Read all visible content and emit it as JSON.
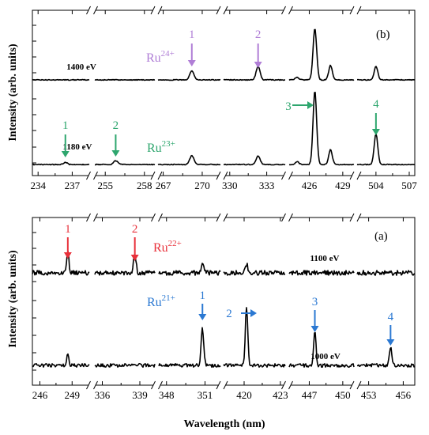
{
  "figure": {
    "xlabel": "Wavelength (nm)",
    "ylabel": "Intensity (arb. units)"
  },
  "colors": {
    "ru24": "#b07ed6",
    "ru23": "#2ea66e",
    "ru22": "#e8303a",
    "ru21": "#2a78d2",
    "trace": "#000000"
  },
  "chart_data": [
    {
      "type": "line",
      "panel_label": "(b)",
      "xlabel": "Wavelength (nm)",
      "ylabel": "Intensity (arb. units)",
      "segments": [
        {
          "ticks": [
            "234",
            "237"
          ],
          "xlim": [
            233.5,
            238.5
          ]
        },
        {
          "ticks": [
            "255",
            "258"
          ],
          "xlim": [
            254.2,
            258.8
          ]
        },
        {
          "ticks": [
            "267",
            "270"
          ],
          "xlim": [
            266.6,
            271.4
          ]
        },
        {
          "ticks": [
            "330",
            "333"
          ],
          "xlim": [
            329.5,
            334.5
          ]
        },
        {
          "ticks": [
            "426",
            "429"
          ],
          "xlim": [
            424.2,
            430.0
          ]
        },
        {
          "ticks": [
            "504",
            "507"
          ],
          "xlim": [
            502.3,
            507.5
          ]
        }
      ],
      "series": [
        {
          "name": "Ru24+",
          "energy": "1400 eV",
          "color": "#b07ed6",
          "peaks": [
            {
              "x": 269.2,
              "y": 0.18
            },
            {
              "x": 332.3,
              "y": 0.26
            },
            {
              "x": 426.5,
              "y": 1.0
            },
            {
              "x": 427.9,
              "y": 0.28
            },
            {
              "x": 424.9,
              "y": 0.05
            },
            {
              "x": 504.0,
              "y": 0.27
            }
          ],
          "annotations": [
            {
              "label": "1",
              "x": 269.2
            },
            {
              "label": "2",
              "x": 332.3
            }
          ]
        },
        {
          "name": "Ru23+",
          "energy": "1180 eV",
          "color": "#2ea66e",
          "peaks": [
            {
              "x": 236.4,
              "y": 0.03
            },
            {
              "x": 255.8,
              "y": 0.05
            },
            {
              "x": 269.2,
              "y": 0.12
            },
            {
              "x": 332.3,
              "y": 0.12
            },
            {
              "x": 426.5,
              "y": 1.0
            },
            {
              "x": 427.9,
              "y": 0.2
            },
            {
              "x": 424.9,
              "y": 0.04
            },
            {
              "x": 504.0,
              "y": 0.42
            }
          ],
          "annotations": [
            {
              "label": "1",
              "x": 236.4
            },
            {
              "label": "2",
              "x": 255.8
            },
            {
              "label": "3",
              "x": 426.5
            },
            {
              "label": "4",
              "x": 504.0
            }
          ]
        }
      ]
    },
    {
      "type": "line",
      "panel_label": "(a)",
      "xlabel": "Wavelength (nm)",
      "ylabel": "Intensity (arb. units)",
      "segments": [
        {
          "ticks": [
            "246",
            "249"
          ],
          "xlim": [
            245.3,
            250.6
          ]
        },
        {
          "ticks": [
            "336",
            "339"
          ],
          "xlim": [
            335.4,
            340.2
          ]
        },
        {
          "ticks": [
            "348",
            "351"
          ],
          "xlim": [
            347.4,
            352.2
          ]
        },
        {
          "ticks": [
            "420",
            "423"
          ],
          "xlim": [
            418.3,
            423.4
          ]
        },
        {
          "ticks": [
            "447",
            "450"
          ],
          "xlim": [
            445.2,
            451.0
          ]
        },
        {
          "ticks": [
            "453",
            "456"
          ],
          "xlim": [
            452.0,
            457.0
          ]
        }
      ],
      "series": [
        {
          "name": "Ru22+",
          "energy": "1100 eV",
          "color": "#e8303a",
          "peaks": [
            {
              "x": 248.6,
              "y": 0.38
            },
            {
              "x": 338.6,
              "y": 0.3
            },
            {
              "x": 350.8,
              "y": 0.16
            },
            {
              "x": 420.2,
              "y": 0.14
            }
          ],
          "annotations": [
            {
              "label": "1",
              "x": 248.6
            },
            {
              "label": "2",
              "x": 338.6
            }
          ]
        },
        {
          "name": "Ru21+",
          "energy": "1000 eV",
          "color": "#2a78d2",
          "peaks": [
            {
              "x": 248.6,
              "y": 0.22
            },
            {
              "x": 350.8,
              "y": 0.62
            },
            {
              "x": 420.2,
              "y": 1.0
            },
            {
              "x": 447.5,
              "y": 0.6
            },
            {
              "x": 454.9,
              "y": 0.3
            }
          ],
          "annotations": [
            {
              "label": "1",
              "x": 350.8
            },
            {
              "label": "2",
              "x": 420.2
            },
            {
              "label": "3",
              "x": 447.5
            },
            {
              "label": "4",
              "x": 454.9
            }
          ]
        }
      ]
    }
  ]
}
